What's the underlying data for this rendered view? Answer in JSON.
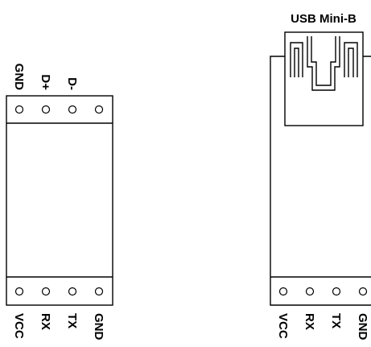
{
  "left_board": {
    "top_labels": [
      "GND",
      "D+",
      "D-"
    ],
    "bottom_labels": [
      "VCC",
      "RX",
      "TX",
      "GND"
    ]
  },
  "right_board": {
    "connector_label": "USB Mini-B",
    "bottom_labels": [
      "VCC",
      "RX",
      "TX",
      "GND"
    ]
  },
  "colors": {
    "stroke": "#000000",
    "background": "#ffffff"
  }
}
